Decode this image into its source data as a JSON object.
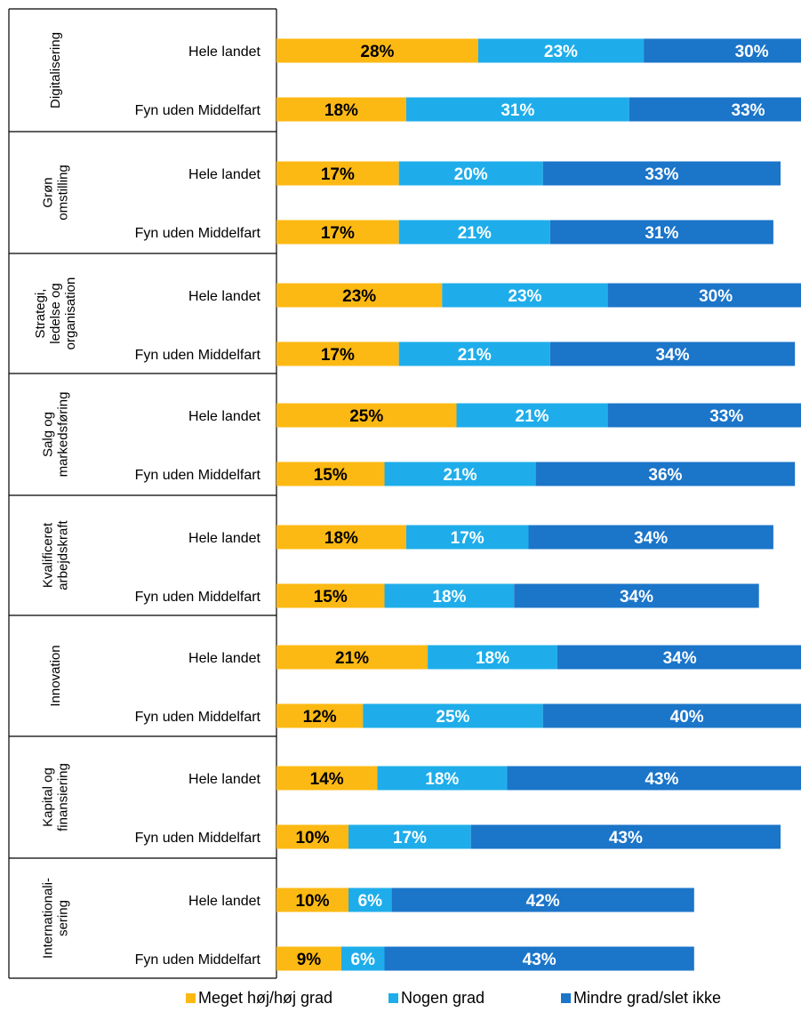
{
  "chart_data": {
    "type": "bar",
    "orientation": "horizontal",
    "stacked": true,
    "grid": false,
    "legend_position": "bottom",
    "colors": [
      "#FDB913",
      "#1EADEA",
      "#1B75C9"
    ],
    "series": [
      {
        "name": "Meget høj/høj grad",
        "color": "#FDB913"
      },
      {
        "name": "Nogen grad",
        "color": "#1EADEA"
      },
      {
        "name": "Mindre grad/slet ikke",
        "color": "#1B75C9"
      }
    ],
    "groups": [
      {
        "category_lines": [
          "Digitalisering"
        ],
        "rows": [
          {
            "label": "Hele landet",
            "values": [
              28,
              23,
              30
            ]
          },
          {
            "label": "Fyn uden Middelfart",
            "values": [
              18,
              31,
              33
            ]
          }
        ]
      },
      {
        "category_lines": [
          "Grøn",
          "omstilling"
        ],
        "rows": [
          {
            "label": "Hele landet",
            "values": [
              17,
              20,
              33
            ]
          },
          {
            "label": "Fyn uden Middelfart",
            "values": [
              17,
              21,
              31
            ]
          }
        ]
      },
      {
        "category_lines": [
          "Strategi,",
          "ledelse og",
          "organisation"
        ],
        "rows": [
          {
            "label": "Hele landet",
            "values": [
              23,
              23,
              30
            ]
          },
          {
            "label": "Fyn uden Middelfart",
            "values": [
              17,
              21,
              34
            ]
          }
        ]
      },
      {
        "category_lines": [
          "Salg og",
          "markedsføring"
        ],
        "rows": [
          {
            "label": "Hele landet",
            "values": [
              25,
              21,
              33
            ]
          },
          {
            "label": "Fyn uden Middelfart",
            "values": [
              15,
              21,
              36
            ]
          }
        ]
      },
      {
        "category_lines": [
          "Kvalificeret",
          "arbejdskraft"
        ],
        "rows": [
          {
            "label": "Hele landet",
            "values": [
              18,
              17,
              34
            ]
          },
          {
            "label": "Fyn uden Middelfart",
            "values": [
              15,
              18,
              34
            ]
          }
        ]
      },
      {
        "category_lines": [
          "Innovation"
        ],
        "rows": [
          {
            "label": "Hele landet",
            "values": [
              21,
              18,
              34
            ]
          },
          {
            "label": "Fyn uden Middelfart",
            "values": [
              12,
              25,
              40
            ]
          }
        ]
      },
      {
        "category_lines": [
          "Kapital og",
          "finansiering"
        ],
        "rows": [
          {
            "label": "Hele landet",
            "values": [
              14,
              18,
              43
            ]
          },
          {
            "label": "Fyn uden Middelfart",
            "values": [
              10,
              17,
              43
            ]
          }
        ]
      },
      {
        "category_lines": [
          "Internationali-",
          "sering"
        ],
        "rows": [
          {
            "label": "Hele landet",
            "values": [
              10,
              6,
              42
            ]
          },
          {
            "label": "Fyn uden Middelfart",
            "values": [
              9,
              6,
              43
            ]
          }
        ]
      }
    ]
  }
}
